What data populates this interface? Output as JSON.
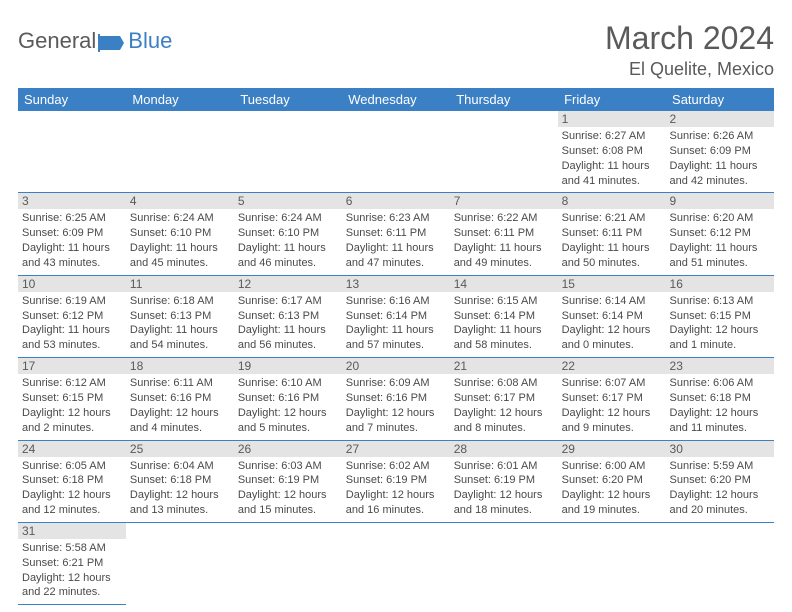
{
  "logo": {
    "text1": "General",
    "text2": "Blue"
  },
  "header": {
    "title": "March 2024",
    "location": "El Quelite, Mexico"
  },
  "colors": {
    "header_bg": "#3b7fc4",
    "daynum_bg": "#e4e4e4",
    "text": "#4a4a4a",
    "border": "#3b7fc4"
  },
  "dayNames": [
    "Sunday",
    "Monday",
    "Tuesday",
    "Wednesday",
    "Thursday",
    "Friday",
    "Saturday"
  ],
  "weeks": [
    {
      "nums": [
        "",
        "",
        "",
        "",
        "",
        "1",
        "2"
      ],
      "cells": [
        null,
        null,
        null,
        null,
        null,
        {
          "sr": "Sunrise: 6:27 AM",
          "ss": "Sunset: 6:08 PM",
          "dl": "Daylight: 11 hours and 41 minutes."
        },
        {
          "sr": "Sunrise: 6:26 AM",
          "ss": "Sunset: 6:09 PM",
          "dl": "Daylight: 11 hours and 42 minutes."
        }
      ]
    },
    {
      "nums": [
        "3",
        "4",
        "5",
        "6",
        "7",
        "8",
        "9"
      ],
      "cells": [
        {
          "sr": "Sunrise: 6:25 AM",
          "ss": "Sunset: 6:09 PM",
          "dl": "Daylight: 11 hours and 43 minutes."
        },
        {
          "sr": "Sunrise: 6:24 AM",
          "ss": "Sunset: 6:10 PM",
          "dl": "Daylight: 11 hours and 45 minutes."
        },
        {
          "sr": "Sunrise: 6:24 AM",
          "ss": "Sunset: 6:10 PM",
          "dl": "Daylight: 11 hours and 46 minutes."
        },
        {
          "sr": "Sunrise: 6:23 AM",
          "ss": "Sunset: 6:11 PM",
          "dl": "Daylight: 11 hours and 47 minutes."
        },
        {
          "sr": "Sunrise: 6:22 AM",
          "ss": "Sunset: 6:11 PM",
          "dl": "Daylight: 11 hours and 49 minutes."
        },
        {
          "sr": "Sunrise: 6:21 AM",
          "ss": "Sunset: 6:11 PM",
          "dl": "Daylight: 11 hours and 50 minutes."
        },
        {
          "sr": "Sunrise: 6:20 AM",
          "ss": "Sunset: 6:12 PM",
          "dl": "Daylight: 11 hours and 51 minutes."
        }
      ]
    },
    {
      "nums": [
        "10",
        "11",
        "12",
        "13",
        "14",
        "15",
        "16"
      ],
      "cells": [
        {
          "sr": "Sunrise: 6:19 AM",
          "ss": "Sunset: 6:12 PM",
          "dl": "Daylight: 11 hours and 53 minutes."
        },
        {
          "sr": "Sunrise: 6:18 AM",
          "ss": "Sunset: 6:13 PM",
          "dl": "Daylight: 11 hours and 54 minutes."
        },
        {
          "sr": "Sunrise: 6:17 AM",
          "ss": "Sunset: 6:13 PM",
          "dl": "Daylight: 11 hours and 56 minutes."
        },
        {
          "sr": "Sunrise: 6:16 AM",
          "ss": "Sunset: 6:14 PM",
          "dl": "Daylight: 11 hours and 57 minutes."
        },
        {
          "sr": "Sunrise: 6:15 AM",
          "ss": "Sunset: 6:14 PM",
          "dl": "Daylight: 11 hours and 58 minutes."
        },
        {
          "sr": "Sunrise: 6:14 AM",
          "ss": "Sunset: 6:14 PM",
          "dl": "Daylight: 12 hours and 0 minutes."
        },
        {
          "sr": "Sunrise: 6:13 AM",
          "ss": "Sunset: 6:15 PM",
          "dl": "Daylight: 12 hours and 1 minute."
        }
      ]
    },
    {
      "nums": [
        "17",
        "18",
        "19",
        "20",
        "21",
        "22",
        "23"
      ],
      "cells": [
        {
          "sr": "Sunrise: 6:12 AM",
          "ss": "Sunset: 6:15 PM",
          "dl": "Daylight: 12 hours and 2 minutes."
        },
        {
          "sr": "Sunrise: 6:11 AM",
          "ss": "Sunset: 6:16 PM",
          "dl": "Daylight: 12 hours and 4 minutes."
        },
        {
          "sr": "Sunrise: 6:10 AM",
          "ss": "Sunset: 6:16 PM",
          "dl": "Daylight: 12 hours and 5 minutes."
        },
        {
          "sr": "Sunrise: 6:09 AM",
          "ss": "Sunset: 6:16 PM",
          "dl": "Daylight: 12 hours and 7 minutes."
        },
        {
          "sr": "Sunrise: 6:08 AM",
          "ss": "Sunset: 6:17 PM",
          "dl": "Daylight: 12 hours and 8 minutes."
        },
        {
          "sr": "Sunrise: 6:07 AM",
          "ss": "Sunset: 6:17 PM",
          "dl": "Daylight: 12 hours and 9 minutes."
        },
        {
          "sr": "Sunrise: 6:06 AM",
          "ss": "Sunset: 6:18 PM",
          "dl": "Daylight: 12 hours and 11 minutes."
        }
      ]
    },
    {
      "nums": [
        "24",
        "25",
        "26",
        "27",
        "28",
        "29",
        "30"
      ],
      "cells": [
        {
          "sr": "Sunrise: 6:05 AM",
          "ss": "Sunset: 6:18 PM",
          "dl": "Daylight: 12 hours and 12 minutes."
        },
        {
          "sr": "Sunrise: 6:04 AM",
          "ss": "Sunset: 6:18 PM",
          "dl": "Daylight: 12 hours and 13 minutes."
        },
        {
          "sr": "Sunrise: 6:03 AM",
          "ss": "Sunset: 6:19 PM",
          "dl": "Daylight: 12 hours and 15 minutes."
        },
        {
          "sr": "Sunrise: 6:02 AM",
          "ss": "Sunset: 6:19 PM",
          "dl": "Daylight: 12 hours and 16 minutes."
        },
        {
          "sr": "Sunrise: 6:01 AM",
          "ss": "Sunset: 6:19 PM",
          "dl": "Daylight: 12 hours and 18 minutes."
        },
        {
          "sr": "Sunrise: 6:00 AM",
          "ss": "Sunset: 6:20 PM",
          "dl": "Daylight: 12 hours and 19 minutes."
        },
        {
          "sr": "Sunrise: 5:59 AM",
          "ss": "Sunset: 6:20 PM",
          "dl": "Daylight: 12 hours and 20 minutes."
        }
      ]
    },
    {
      "nums": [
        "31",
        "",
        "",
        "",
        "",
        "",
        ""
      ],
      "cells": [
        {
          "sr": "Sunrise: 5:58 AM",
          "ss": "Sunset: 6:21 PM",
          "dl": "Daylight: 12 hours and 22 minutes."
        },
        null,
        null,
        null,
        null,
        null,
        null
      ]
    }
  ]
}
